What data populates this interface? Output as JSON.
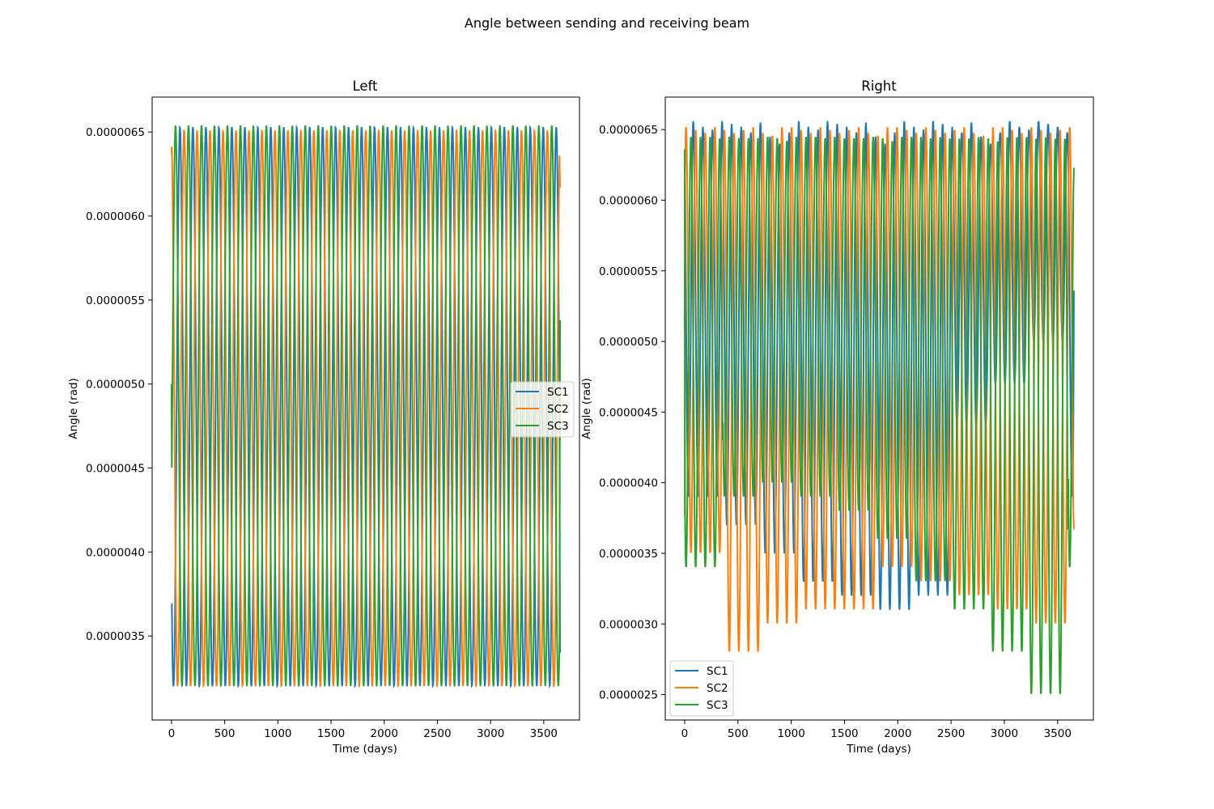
{
  "figure": {
    "suptitle": "Angle between sending and receiving beam"
  },
  "chart_data": [
    {
      "type": "line",
      "title": "Left",
      "xlabel": "Time (days)",
      "ylabel": "Angle (rad)",
      "xlim": [
        -182,
        3836
      ],
      "ylim": [
        3e-06,
        6.708e-06
      ],
      "xticks": [
        0,
        500,
        1000,
        1500,
        2000,
        2500,
        3000,
        3500
      ],
      "xtick_labels": [
        "0",
        "500",
        "1000",
        "1500",
        "2000",
        "2500",
        "3000",
        "3500"
      ],
      "yticks": [
        3.5e-06,
        4e-06,
        4.5e-06,
        5e-06,
        5.5e-06,
        6e-06,
        6.5e-06
      ],
      "ytick_labels": [
        "0.0000035",
        "0.0000040",
        "0.0000045",
        "0.0000050",
        "0.0000055",
        "0.0000060",
        "0.0000065"
      ],
      "legend": "center-right",
      "grid": false,
      "x_end": 3653,
      "series": [
        {
          "name": "SC1",
          "color": "#1f77b4",
          "start": 3.69e-06,
          "end": 3.4e-06,
          "min": 3.2e-06,
          "max": 6.53e-06,
          "period": 122,
          "phase": 0.6
        },
        {
          "name": "SC2",
          "color": "#ff7f0e",
          "start": 6.37e-06,
          "end": 6.17e-06,
          "min": 3.2e-06,
          "max": 6.51e-06,
          "period": 122,
          "phase": 0.28
        },
        {
          "name": "SC3",
          "color": "#2ca02c",
          "start": 5e-06,
          "end": 5.38e-06,
          "min": 3.2e-06,
          "max": 6.54e-06,
          "period": 122,
          "phase": 0.94
        }
      ]
    },
    {
      "type": "line",
      "title": "Right",
      "xlabel": "Time (days)",
      "ylabel": "Angle (rad)",
      "xlim": [
        -182,
        3836
      ],
      "ylim": [
        2.32e-06,
        6.73e-06
      ],
      "xticks": [
        0,
        500,
        1000,
        1500,
        2000,
        2500,
        3000,
        3500
      ],
      "xtick_labels": [
        "0",
        "500",
        "1000",
        "1500",
        "2000",
        "2500",
        "3000",
        "3500"
      ],
      "yticks": [
        2.5e-06,
        3e-06,
        3.5e-06,
        4e-06,
        4.5e-06,
        5e-06,
        5.5e-06,
        6e-06,
        6.5e-06
      ],
      "ytick_labels": [
        "0.0000025",
        "0.0000030",
        "0.0000035",
        "0.0000040",
        "0.0000045",
        "0.0000050",
        "0.0000055",
        "0.0000060",
        "0.0000065"
      ],
      "legend": "lower-left",
      "grid": false,
      "x_end": 3653,
      "series": [
        {
          "name": "SC1",
          "color": "#1f77b4",
          "start": 5.06e-06,
          "end": 5.36e-06,
          "period": 90,
          "phase": 0.35,
          "maxima": [
            6.56e-06,
            6.52e-06,
            6.5e-06,
            6.56e-06,
            6.54e-06,
            6.52e-06,
            6.48e-06,
            6.55e-06,
            6.45e-06,
            6.4e-06,
            6.48e-06
          ],
          "minima": [
            3.9e-06,
            3.7e-06,
            3.5e-06,
            3.3e-06,
            3.2e-06,
            3.1e-06,
            3.2e-06,
            4.4e-06,
            4.7e-06,
            5e-06
          ]
        },
        {
          "name": "SC2",
          "color": "#ff7f0e",
          "start": 3.77e-06,
          "end": 3.67e-06,
          "period": 90,
          "phase": 0.1,
          "maxima": [
            6.52e-06,
            6.5e-06,
            6.48e-06,
            6.52e-06,
            6.5e-06,
            6.48e-06,
            6.5e-06,
            6.52e-06,
            6.48e-06,
            6.46e-06,
            6.52e-06
          ],
          "minima": [
            3.5e-06,
            2.8e-06,
            3e-06,
            3.1e-06,
            3.1e-06,
            3.4e-06,
            3.3e-06,
            3.2e-06,
            3.1e-06,
            3e-06,
            3.4e-06
          ]
        },
        {
          "name": "SC3",
          "color": "#2ca02c",
          "start": 6.36e-06,
          "end": 6.23e-06,
          "period": 90,
          "phase": 0.6,
          "maxima": [
            6.45e-06,
            6.45e-06,
            6.45e-06,
            6.44e-06,
            6.45e-06,
            6.44e-06,
            6.44e-06,
            6.44e-06,
            6.45e-06,
            6.44e-06,
            6.42e-06
          ],
          "minima": [
            3.4e-06,
            3.9e-06,
            4e-06,
            3.9e-06,
            3.8e-06,
            3.6e-06,
            3.3e-06,
            3.1e-06,
            2.8e-06,
            2.5e-06
          ]
        }
      ]
    }
  ]
}
